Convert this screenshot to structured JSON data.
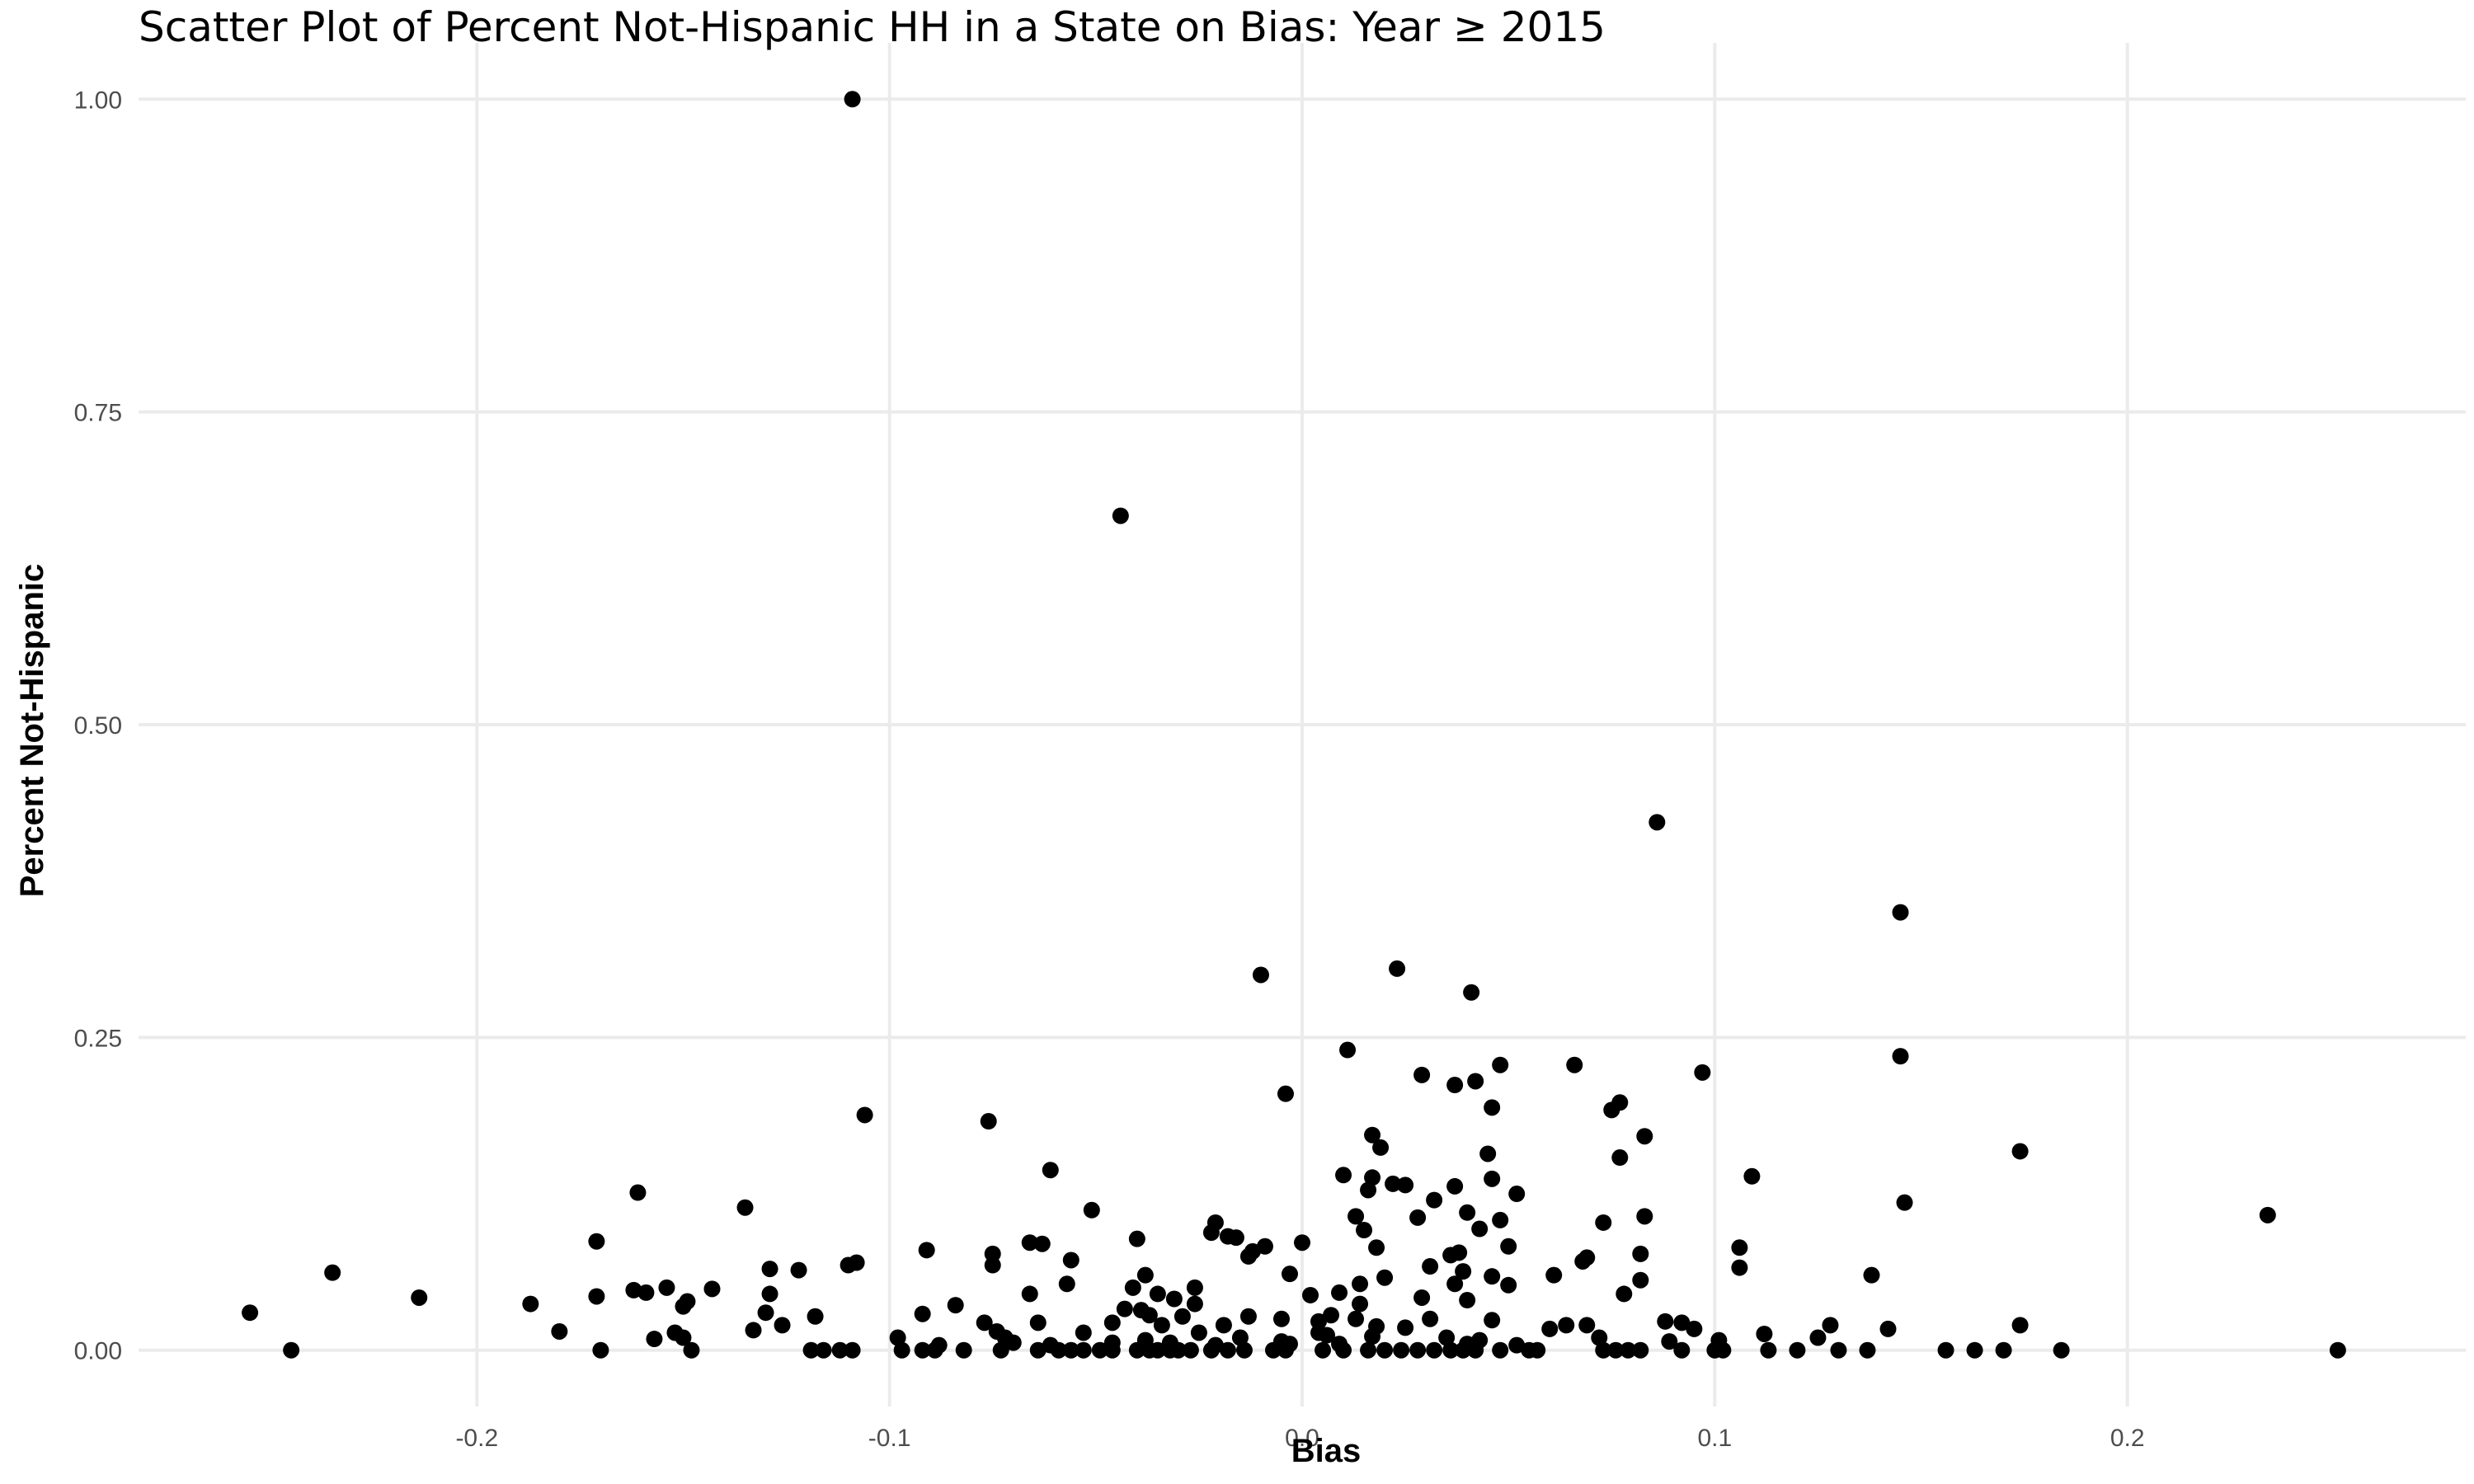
{
  "chart_data": {
    "type": "scatter",
    "title": "Scatter Plot of Percent Not-Hispanic HH in a State on Bias: Year ≥ 2015",
    "xlabel": "Bias",
    "ylabel": "Percent Not-Hispanic",
    "xlim": [
      -0.282,
      0.282
    ],
    "ylim": [
      -0.045,
      1.045
    ],
    "x_ticks": [
      -0.2,
      -0.1,
      0.0,
      0.1,
      0.2
    ],
    "x_tick_labels": [
      "-0.2",
      "-0.1",
      "0.0",
      "0.1",
      "0.2"
    ],
    "y_ticks": [
      0.0,
      0.25,
      0.5,
      0.75,
      1.0
    ],
    "y_tick_labels": [
      "0.00",
      "0.25",
      "0.50",
      "0.75",
      "1.00"
    ],
    "grid": true,
    "legend": "none",
    "point_color": "#000000",
    "grid_color": "#ebebeb",
    "points": [
      [
        -0.109,
        1.0
      ],
      [
        -0.044,
        0.667
      ],
      [
        0.086,
        0.422
      ],
      [
        0.145,
        0.35
      ],
      [
        0.023,
        0.305
      ],
      [
        -0.01,
        0.3
      ],
      [
        0.041,
        0.286
      ],
      [
        0.145,
        0.235
      ],
      [
        0.011,
        0.24
      ],
      [
        0.097,
        0.222
      ],
      [
        0.029,
        0.22
      ],
      [
        0.066,
        0.228
      ],
      [
        0.048,
        0.228
      ],
      [
        0.042,
        0.215
      ],
      [
        0.037,
        0.212
      ],
      [
        -0.004,
        0.205
      ],
      [
        0.077,
        0.198
      ],
      [
        0.046,
        0.194
      ],
      [
        0.075,
        0.192
      ],
      [
        -0.106,
        0.188
      ],
      [
        -0.076,
        0.183
      ],
      [
        0.017,
        0.172
      ],
      [
        0.083,
        0.171
      ],
      [
        0.019,
        0.162
      ],
      [
        0.174,
        0.159
      ],
      [
        0.045,
        0.157
      ],
      [
        0.077,
        0.154
      ],
      [
        0.01,
        0.14
      ],
      [
        -0.061,
        0.144
      ],
      [
        0.017,
        0.138
      ],
      [
        0.109,
        0.139
      ],
      [
        0.046,
        0.137
      ],
      [
        0.022,
        0.133
      ],
      [
        0.025,
        0.132
      ],
      [
        0.037,
        0.131
      ],
      [
        0.016,
        0.128
      ],
      [
        -0.161,
        0.126
      ],
      [
        0.052,
        0.125
      ],
      [
        0.032,
        0.12
      ],
      [
        0.146,
        0.118
      ],
      [
        -0.135,
        0.114
      ],
      [
        -0.051,
        0.112
      ],
      [
        0.04,
        0.11
      ],
      [
        0.083,
        0.107
      ],
      [
        0.013,
        0.107
      ],
      [
        0.028,
        0.106
      ],
      [
        0.073,
        0.102
      ],
      [
        0.048,
        0.104
      ],
      [
        0.234,
        0.108
      ],
      [
        0.043,
        0.097
      ],
      [
        -0.021,
        0.102
      ],
      [
        0.015,
        0.096
      ],
      [
        -0.022,
        0.094
      ],
      [
        -0.018,
        0.091
      ],
      [
        -0.016,
        0.09
      ],
      [
        -0.04,
        0.089
      ],
      [
        -0.171,
        0.087
      ],
      [
        -0.066,
        0.086
      ],
      [
        0.0,
        0.086
      ],
      [
        -0.063,
        0.085
      ],
      [
        -0.009,
        0.083
      ],
      [
        0.05,
        0.083
      ],
      [
        0.018,
        0.082
      ],
      [
        0.106,
        0.082
      ],
      [
        -0.091,
        0.08
      ],
      [
        -0.012,
        0.079
      ],
      [
        0.038,
        0.078
      ],
      [
        0.082,
        0.077
      ],
      [
        -0.075,
        0.077
      ],
      [
        0.036,
        0.076
      ],
      [
        -0.013,
        0.075
      ],
      [
        0.069,
        0.074
      ],
      [
        -0.056,
        0.072
      ],
      [
        -0.108,
        0.07
      ],
      [
        0.068,
        0.071
      ],
      [
        -0.11,
        0.068
      ],
      [
        -0.075,
        0.068
      ],
      [
        0.031,
        0.067
      ],
      [
        0.106,
        0.066
      ],
      [
        -0.129,
        0.065
      ],
      [
        -0.122,
        0.064
      ],
      [
        0.039,
        0.063
      ],
      [
        -0.003,
        0.061
      ],
      [
        -0.038,
        0.06
      ],
      [
        -0.235,
        0.062
      ],
      [
        0.02,
        0.058
      ],
      [
        0.138,
        0.06
      ],
      [
        0.046,
        0.059
      ],
      [
        0.061,
        0.06
      ],
      [
        0.082,
        0.056
      ],
      [
        0.014,
        0.053
      ],
      [
        0.037,
        0.053
      ],
      [
        0.05,
        0.052
      ],
      [
        -0.057,
        0.053
      ],
      [
        -0.026,
        0.05
      ],
      [
        -0.154,
        0.05
      ],
      [
        -0.143,
        0.049
      ],
      [
        -0.162,
        0.048
      ],
      [
        -0.159,
        0.046
      ],
      [
        -0.066,
        0.045
      ],
      [
        0.009,
        0.046
      ],
      [
        -0.035,
        0.045
      ],
      [
        -0.129,
        0.045
      ],
      [
        -0.041,
        0.05
      ],
      [
        0.002,
        0.044
      ],
      [
        -0.214,
        0.042
      ],
      [
        -0.171,
        0.043
      ],
      [
        0.029,
        0.042
      ],
      [
        0.078,
        0.045
      ],
      [
        0.04,
        0.04
      ],
      [
        -0.031,
        0.041
      ],
      [
        -0.149,
        0.039
      ],
      [
        -0.187,
        0.037
      ],
      [
        -0.026,
        0.037
      ],
      [
        0.014,
        0.037
      ],
      [
        -0.084,
        0.036
      ],
      [
        -0.043,
        0.033
      ],
      [
        -0.039,
        0.032
      ],
      [
        -0.037,
        0.028
      ],
      [
        -0.029,
        0.027
      ],
      [
        -0.013,
        0.027
      ],
      [
        -0.15,
        0.035
      ],
      [
        -0.13,
        0.03
      ],
      [
        -0.118,
        0.027
      ],
      [
        0.007,
        0.028
      ],
      [
        -0.092,
        0.029
      ],
      [
        -0.255,
        0.03
      ],
      [
        0.013,
        0.025
      ],
      [
        0.031,
        0.025
      ],
      [
        -0.005,
        0.025
      ],
      [
        0.004,
        0.023
      ],
      [
        0.046,
        0.024
      ],
      [
        0.088,
        0.023
      ],
      [
        0.092,
        0.022
      ],
      [
        0.069,
        0.02
      ],
      [
        0.064,
        0.02
      ],
      [
        0.128,
        0.02
      ],
      [
        -0.077,
        0.022
      ],
      [
        -0.064,
        0.022
      ],
      [
        -0.046,
        0.022
      ],
      [
        -0.019,
        0.02
      ],
      [
        -0.034,
        0.02
      ],
      [
        -0.126,
        0.02
      ],
      [
        0.018,
        0.019
      ],
      [
        0.025,
        0.018
      ],
      [
        0.174,
        0.02
      ],
      [
        0.142,
        0.017
      ],
      [
        0.095,
        0.017
      ],
      [
        0.06,
        0.017
      ],
      [
        -0.133,
        0.016
      ],
      [
        -0.18,
        0.015
      ],
      [
        -0.074,
        0.015
      ],
      [
        -0.053,
        0.014
      ],
      [
        -0.025,
        0.014
      ],
      [
        0.004,
        0.014
      ],
      [
        -0.152,
        0.014
      ],
      [
        0.112,
        0.013
      ],
      [
        0.006,
        0.012
      ],
      [
        0.017,
        0.011
      ],
      [
        -0.098,
        0.01
      ],
      [
        -0.072,
        0.01
      ],
      [
        -0.015,
        0.01
      ],
      [
        0.035,
        0.01
      ],
      [
        0.072,
        0.01
      ],
      [
        0.125,
        0.01
      ],
      [
        -0.15,
        0.01
      ],
      [
        -0.157,
        0.009
      ],
      [
        -0.038,
        0.008
      ],
      [
        -0.005,
        0.007
      ],
      [
        0.043,
        0.008
      ],
      [
        0.089,
        0.007
      ],
      [
        0.101,
        0.008
      ],
      [
        -0.046,
        0.006
      ],
      [
        -0.07,
        0.006
      ],
      [
        -0.032,
        0.006
      ],
      [
        -0.003,
        0.005
      ],
      [
        0.009,
        0.005
      ],
      [
        0.04,
        0.005
      ],
      [
        0.052,
        0.004
      ],
      [
        -0.088,
        0.004
      ],
      [
        -0.061,
        0.004
      ],
      [
        -0.021,
        0.004
      ],
      [
        -0.245,
        0.0
      ],
      [
        -0.17,
        0.0
      ],
      [
        -0.148,
        0.0
      ],
      [
        -0.119,
        0.0
      ],
      [
        -0.116,
        0.0
      ],
      [
        -0.112,
        0.0
      ],
      [
        -0.109,
        0.0
      ],
      [
        -0.097,
        0.0
      ],
      [
        -0.092,
        0.0
      ],
      [
        -0.089,
        0.0
      ],
      [
        -0.082,
        0.0
      ],
      [
        -0.073,
        0.0
      ],
      [
        -0.064,
        0.0
      ],
      [
        -0.059,
        0.0
      ],
      [
        -0.056,
        0.0
      ],
      [
        -0.053,
        0.0
      ],
      [
        -0.049,
        0.0
      ],
      [
        -0.046,
        0.0
      ],
      [
        -0.04,
        0.0
      ],
      [
        -0.037,
        0.0
      ],
      [
        -0.035,
        0.0
      ],
      [
        -0.032,
        0.0
      ],
      [
        -0.03,
        0.0
      ],
      [
        -0.027,
        0.0
      ],
      [
        -0.022,
        0.0
      ],
      [
        -0.018,
        0.0
      ],
      [
        -0.014,
        0.0
      ],
      [
        -0.007,
        0.0
      ],
      [
        -0.004,
        0.0
      ],
      [
        0.005,
        0.0
      ],
      [
        0.01,
        0.0
      ],
      [
        0.016,
        0.0
      ],
      [
        0.02,
        0.0
      ],
      [
        0.024,
        0.0
      ],
      [
        0.028,
        0.0
      ],
      [
        0.032,
        0.0
      ],
      [
        0.036,
        0.0
      ],
      [
        0.039,
        0.0
      ],
      [
        0.042,
        0.0
      ],
      [
        0.048,
        0.0
      ],
      [
        0.055,
        0.0
      ],
      [
        0.057,
        0.0
      ],
      [
        0.073,
        0.0
      ],
      [
        0.076,
        0.0
      ],
      [
        0.079,
        0.0
      ],
      [
        0.082,
        0.0
      ],
      [
        0.092,
        0.0
      ],
      [
        0.1,
        0.0
      ],
      [
        0.102,
        0.0
      ],
      [
        0.113,
        0.0
      ],
      [
        0.12,
        0.0
      ],
      [
        0.13,
        0.0
      ],
      [
        0.137,
        0.0
      ],
      [
        0.156,
        0.0
      ],
      [
        0.163,
        0.0
      ],
      [
        0.17,
        0.0
      ],
      [
        0.184,
        0.0
      ],
      [
        0.251,
        0.0
      ]
    ]
  }
}
